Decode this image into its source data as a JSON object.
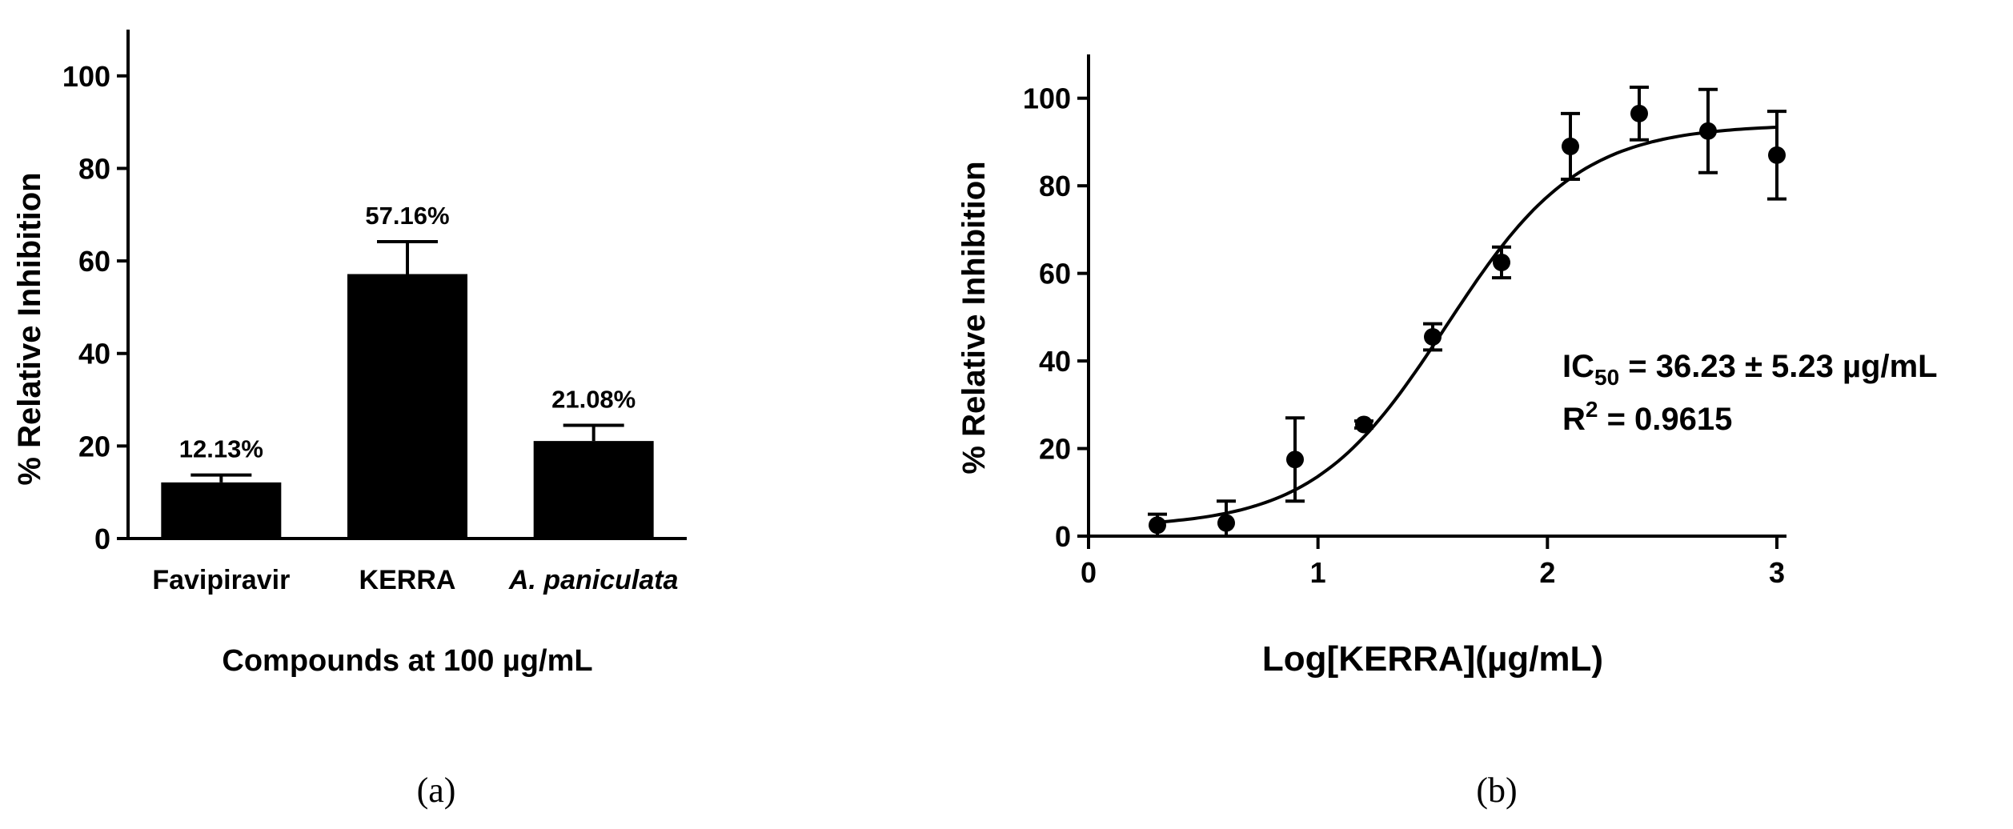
{
  "panel_labels": [
    "(a)",
    "(b)"
  ],
  "chart_data": [
    {
      "type": "bar",
      "categories": [
        "Favipiravir",
        "KERRA",
        "A. paniculata"
      ],
      "category_italic": [
        false,
        false,
        true
      ],
      "values": [
        12.13,
        57.16,
        21.08
      ],
      "errors": [
        1.6,
        7.0,
        3.4
      ],
      "data_labels": [
        "12.13%",
        "57.16%",
        "21.08%"
      ],
      "title": "",
      "xlabel": "Compounds at 100 µg/mL",
      "ylabel": "% Relative Inhibition",
      "ylim": [
        0,
        110
      ],
      "yticks": [
        0,
        20,
        40,
        60,
        80,
        100
      ],
      "bar_color": "#000000",
      "grid": false
    },
    {
      "type": "scatter",
      "title": "",
      "xlabel": "Log[KERRA](µg/mL)",
      "ylabel": "% Relative Inhibition",
      "xlim": [
        0,
        3
      ],
      "ylim": [
        0,
        110
      ],
      "xticks": [
        0,
        1,
        2,
        3
      ],
      "yticks": [
        0,
        20,
        40,
        60,
        80,
        100
      ],
      "points": [
        {
          "x": 0.3,
          "y": 2.5,
          "err": 2.5
        },
        {
          "x": 0.6,
          "y": 3.0,
          "err": 5.0
        },
        {
          "x": 0.9,
          "y": 17.5,
          "err": 9.5
        },
        {
          "x": 1.2,
          "y": 25.5,
          "err": 0.8
        },
        {
          "x": 1.5,
          "y": 45.5,
          "err": 3.0
        },
        {
          "x": 1.8,
          "y": 62.5,
          "err": 3.5
        },
        {
          "x": 2.1,
          "y": 89.0,
          "err": 7.5
        },
        {
          "x": 2.4,
          "y": 96.5,
          "err": 6.0
        },
        {
          "x": 2.7,
          "y": 92.5,
          "err": 9.5
        },
        {
          "x": 3.0,
          "y": 87.0,
          "err": 10.0
        }
      ],
      "fit": {
        "bottom": 2.0,
        "top": 94.0,
        "logEC50": 1.559,
        "hill": 1.5
      },
      "annotation": {
        "ic50_prefix": "IC",
        "ic50_sub": "50",
        "ic50_rest": " = 36.23 ± 5.23 µg/mL",
        "r2_prefix": "R",
        "r2_sup": "2",
        "r2_rest": " = 0.9615"
      },
      "grid": false
    }
  ]
}
